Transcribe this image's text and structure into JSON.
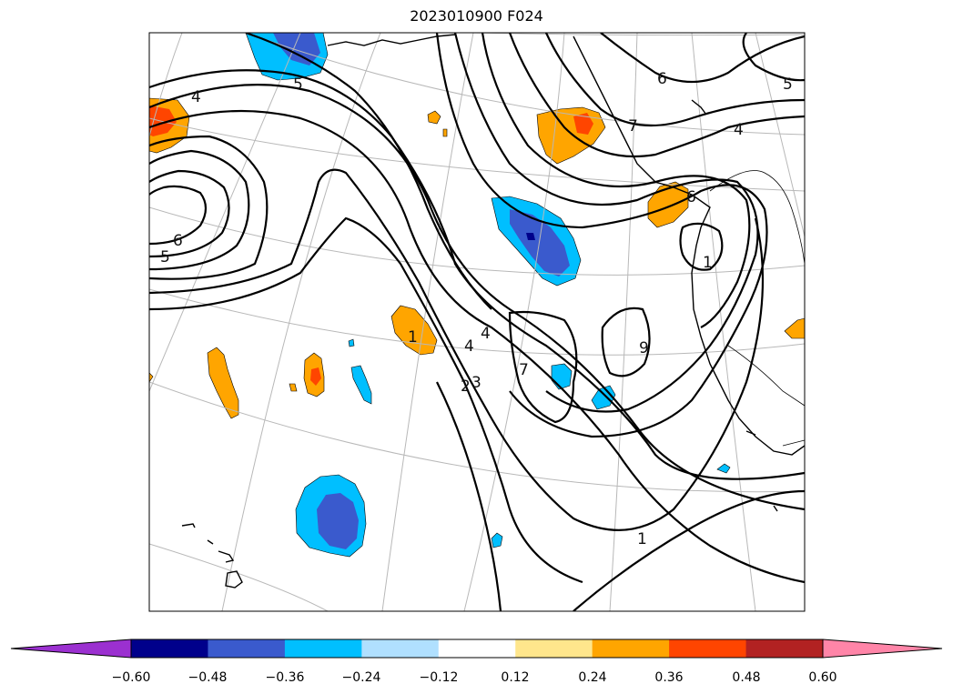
{
  "title": "2023010900 F024",
  "colorbar": {
    "ticks": [
      "−0.60",
      "−0.48",
      "−0.36",
      "−0.24",
      "−0.12",
      "0.12",
      "0.24",
      "0.36",
      "0.48",
      "0.60"
    ],
    "under_color": "#9b30d0",
    "over_color": "#ff85a8",
    "colors": [
      "#00008b",
      "#3a5acd",
      "#00bfff",
      "#b0e0ff",
      "#ffffff",
      "#ffe68c",
      "#ffa500",
      "#ff4500",
      "#b22222"
    ]
  },
  "contour_labels": [
    "4",
    "5",
    "6",
    "5",
    "4",
    "5",
    "6",
    "4",
    "7",
    "1",
    "4",
    "2",
    "3",
    "9",
    "7",
    "6",
    "1",
    "1"
  ],
  "colors": {
    "contour": "#000000",
    "graticule": "#b8b8b8",
    "coast": "#000000"
  }
}
